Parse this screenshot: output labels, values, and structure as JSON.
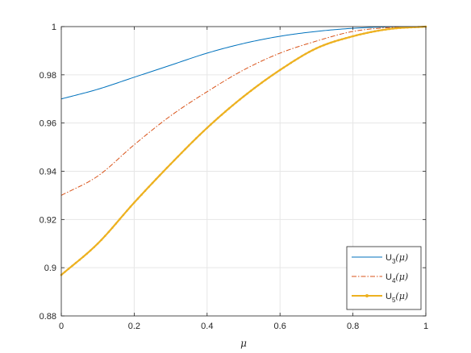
{
  "chart_data": {
    "type": "line",
    "title": "",
    "xlabel": "μ",
    "ylabel": "",
    "xlim": [
      0,
      1
    ],
    "ylim": [
      0.88,
      1
    ],
    "xticks": [
      "0",
      "0.2",
      "0.4",
      "0.6",
      "0.8",
      "1"
    ],
    "yticks": [
      "0.88",
      "0.9",
      "0.92",
      "0.94",
      "0.96",
      "0.98",
      "1"
    ],
    "grid": true,
    "legend_position": "bottom-right",
    "x": [
      0,
      0.1,
      0.2,
      0.3,
      0.4,
      0.5,
      0.6,
      0.7,
      0.8,
      0.9,
      1.0
    ],
    "series": [
      {
        "name": "U3(μ)",
        "legend": {
          "base": "U",
          "sub": "3",
          "arg": "(μ)"
        },
        "color": "#0072BD",
        "style": "solid",
        "values": [
          0.97,
          0.974,
          0.979,
          0.984,
          0.989,
          0.993,
          0.996,
          0.998,
          0.9993,
          0.9999,
          1.0
        ]
      },
      {
        "name": "U4(μ)",
        "legend": {
          "base": "U",
          "sub": "4",
          "arg": "(μ)"
        },
        "color": "#D95319",
        "style": "dashdot",
        "values": [
          0.93,
          0.938,
          0.951,
          0.963,
          0.973,
          0.982,
          0.989,
          0.994,
          0.998,
          0.9996,
          1.0
        ]
      },
      {
        "name": "U5(μ)",
        "legend": {
          "base": "U",
          "sub": "5",
          "arg": "(μ)"
        },
        "color": "#EDB120",
        "style": "solid-markers",
        "values": [
          0.897,
          0.91,
          0.927,
          0.943,
          0.958,
          0.971,
          0.982,
          0.991,
          0.996,
          0.999,
          1.0
        ]
      }
    ]
  }
}
